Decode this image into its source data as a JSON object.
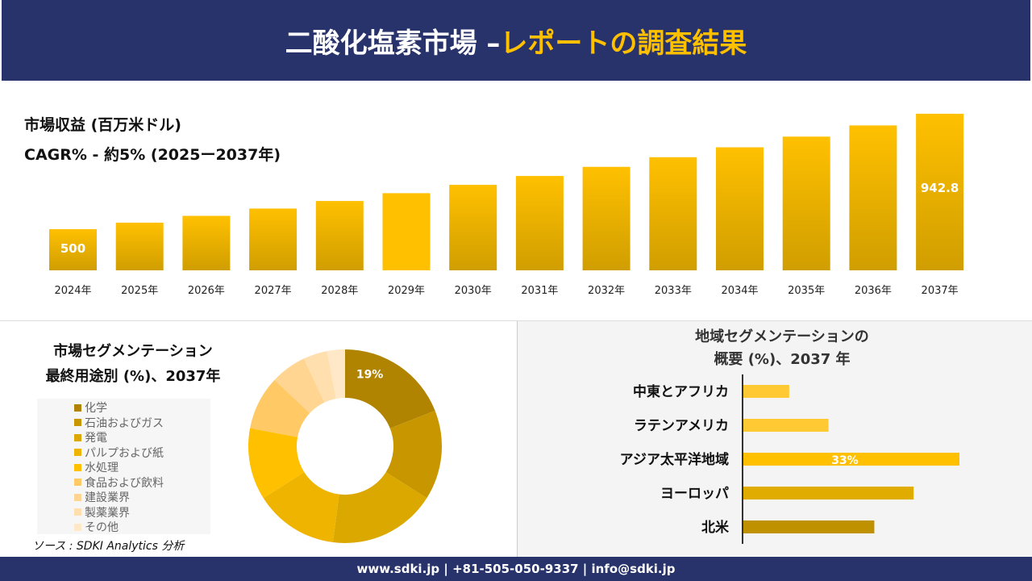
{
  "header": {
    "title_main": "二酸化塩素市場 –",
    "title_accent": "レポートの調査結果"
  },
  "colors": {
    "header_bg": "#28336c",
    "accent": "#ffc000"
  },
  "chart_data": [
    {
      "type": "bar",
      "title": "市場収益 (百万米ドル)",
      "subtitle": "CAGR% - 約5% (2025ー2037年)",
      "categories": [
        "2024年",
        "2025年",
        "2026年",
        "2027年",
        "2028年",
        "2029年",
        "2030年",
        "2031年",
        "2032年",
        "2033年",
        "2034年",
        "2035年",
        "2036年",
        "2037年"
      ],
      "values": [
        500,
        525,
        551,
        579,
        608,
        638,
        670,
        704,
        739,
        776,
        814,
        855,
        898,
        942.8
      ],
      "data_labels": {
        "0": "500",
        "13": "942.8"
      }
    },
    {
      "type": "pie",
      "donut": true,
      "title_line1": "市場セグメンテーション",
      "title_line2": "最終用途別 (%)、2037年",
      "labels": [
        "化学",
        "石油およびガス",
        "発電",
        "パルプおよび紙",
        "水処理",
        "食品および飲料",
        "建設業界",
        "製薬業界",
        "その他"
      ],
      "values": [
        19,
        15,
        18,
        14,
        12,
        9,
        6,
        4,
        3
      ],
      "colors": [
        "#b08300",
        "#c89700",
        "#dba800",
        "#eeb400",
        "#ffc000",
        "#ffc966",
        "#ffd591",
        "#ffdfae",
        "#ffe8c8"
      ],
      "data_labels": {
        "0": "19%"
      },
      "legend": "left"
    },
    {
      "type": "bar",
      "orientation": "horizontal",
      "title_line1": "地域セグメンテーションの",
      "title_line2": "概要 (%)、2037 年",
      "categories": [
        "中東とアフリカ",
        "ラテンアメリカ",
        "アジア太平洋地域",
        "ヨーロッパ",
        "北米"
      ],
      "values": [
        7,
        13,
        33,
        26,
        20
      ],
      "colors": [
        "#ffc933",
        "#ffc933",
        "#ffc000",
        "#e0ac00",
        "#bf9000"
      ],
      "data_labels": {
        "2": "33%"
      }
    }
  ],
  "source": "ソース : SDKI Analytics 分析",
  "footer": "www.sdki.jp | +81-505-050-9337 | info@sdki.jp"
}
